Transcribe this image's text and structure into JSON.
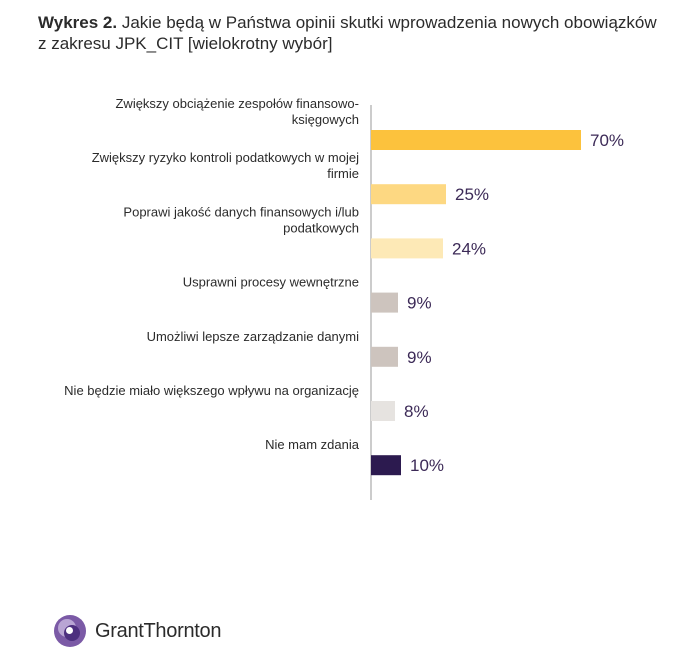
{
  "title": {
    "prefix": "Wykres 2.",
    "text": "Jakie będą w Państwa opinii skutki wprowadzenia nowych obowiązków z zakresu JPK_CIT [wielokrotny wybór]"
  },
  "chart_data": {
    "type": "bar",
    "orientation": "horizontal",
    "categories": [
      [
        "Zwiększy obciążenie zespołów finansowo-",
        "księgowych"
      ],
      [
        "Zwiększy ryzyko kontroli podatkowych w mojej",
        "firmie"
      ],
      [
        "Poprawi jakość danych finansowych i/lub",
        "podatkowych"
      ],
      [
        "Usprawni procesy wewnętrzne"
      ],
      [
        "Umożliwi lepsze zarządzanie danymi"
      ],
      [
        "Nie będzie miało większego wpływu na organizację"
      ],
      [
        "Nie mam zdania"
      ]
    ],
    "values": [
      70,
      25,
      24,
      9,
      9,
      8,
      10
    ],
    "value_labels": [
      "70%",
      "25%",
      "24%",
      "9%",
      "9%",
      "8%",
      "10%"
    ],
    "colors": [
      "#fcc23d",
      "#fdd882",
      "#fde9b6",
      "#cdc4be",
      "#cdc4be",
      "#e6e3e0",
      "#2c1a4f"
    ],
    "xlim": [
      0,
      100
    ],
    "grid": false,
    "legend": false
  },
  "logo": {
    "text": "GrantThornton",
    "colors": {
      "outer": "#7b5aa6",
      "inner": "#4d2f7f",
      "light": "#b9a5d4"
    }
  }
}
